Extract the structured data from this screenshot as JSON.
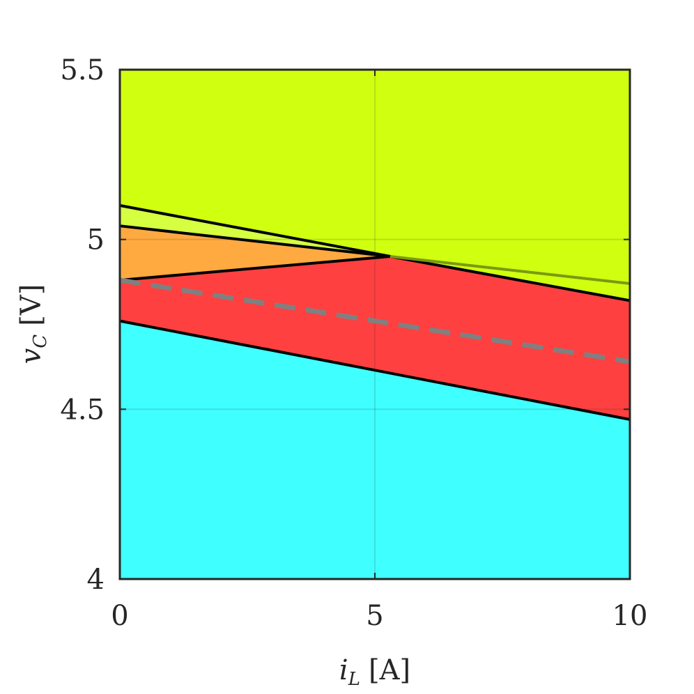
{
  "chart_data": {
    "type": "area",
    "xlabel": {
      "var": "i",
      "sub": "L",
      "unit": "[A]"
    },
    "ylabel": {
      "var": "v",
      "sub": "C",
      "unit": "[V]"
    },
    "xlim": [
      0,
      10
    ],
    "ylim": [
      4,
      5.5
    ],
    "xticks": [
      0,
      5,
      10
    ],
    "xtick_labels": [
      "0",
      "5",
      "10"
    ],
    "yticks": [
      4,
      4.5,
      5,
      5.5
    ],
    "ytick_labels": [
      "4",
      "4.5",
      "5",
      "5.5"
    ],
    "grid": true,
    "regions": [
      {
        "color": "#40ffff",
        "polygon": [
          [
            0,
            4
          ],
          [
            10,
            4
          ],
          [
            10,
            4.47
          ],
          [
            0,
            4.76
          ]
        ]
      },
      {
        "color": "#ff4040",
        "polygon": [
          [
            0,
            4.76
          ],
          [
            10,
            4.47
          ],
          [
            10,
            4.82
          ],
          [
            5.3,
            4.95
          ],
          [
            0,
            4.88
          ]
        ]
      },
      {
        "color": "#ffaa40",
        "polygon": [
          [
            0,
            4.88
          ],
          [
            5.3,
            4.95
          ],
          [
            0,
            5.04
          ]
        ]
      },
      {
        "color": "#d5ff40",
        "polygon": [
          [
            0,
            5.04
          ],
          [
            5.3,
            4.95
          ],
          [
            10,
            4.87
          ],
          [
            10,
            4.82
          ],
          [
            5.3,
            4.95
          ],
          [
            0,
            5.1
          ]
        ]
      },
      {
        "color": "#d0ff10",
        "polygon": [
          [
            0,
            5.1
          ],
          [
            5.3,
            4.95
          ],
          [
            10,
            4.82
          ],
          [
            10,
            5.5
          ],
          [
            0,
            5.5
          ]
        ]
      }
    ],
    "boundary_lines": [
      {
        "color": "#000000",
        "points": [
          [
            0,
            4.76
          ],
          [
            10,
            4.47
          ]
        ]
      },
      {
        "color": "#000000",
        "points": [
          [
            0,
            4.88
          ],
          [
            5.3,
            4.95
          ]
        ]
      },
      {
        "color": "#000000",
        "points": [
          [
            0,
            5.04
          ],
          [
            5.3,
            4.95
          ]
        ]
      },
      {
        "color": "#000000",
        "points": [
          [
            0,
            5.1
          ],
          [
            5.3,
            4.95
          ],
          [
            10,
            4.82
          ]
        ]
      },
      {
        "color": "#7a9a10",
        "points": [
          [
            5.3,
            4.95
          ],
          [
            10,
            4.87
          ]
        ]
      }
    ],
    "reference_line": {
      "color": "#808080",
      "dashed": true,
      "points": [
        [
          0,
          4.88
        ],
        [
          10,
          4.64
        ]
      ]
    }
  }
}
